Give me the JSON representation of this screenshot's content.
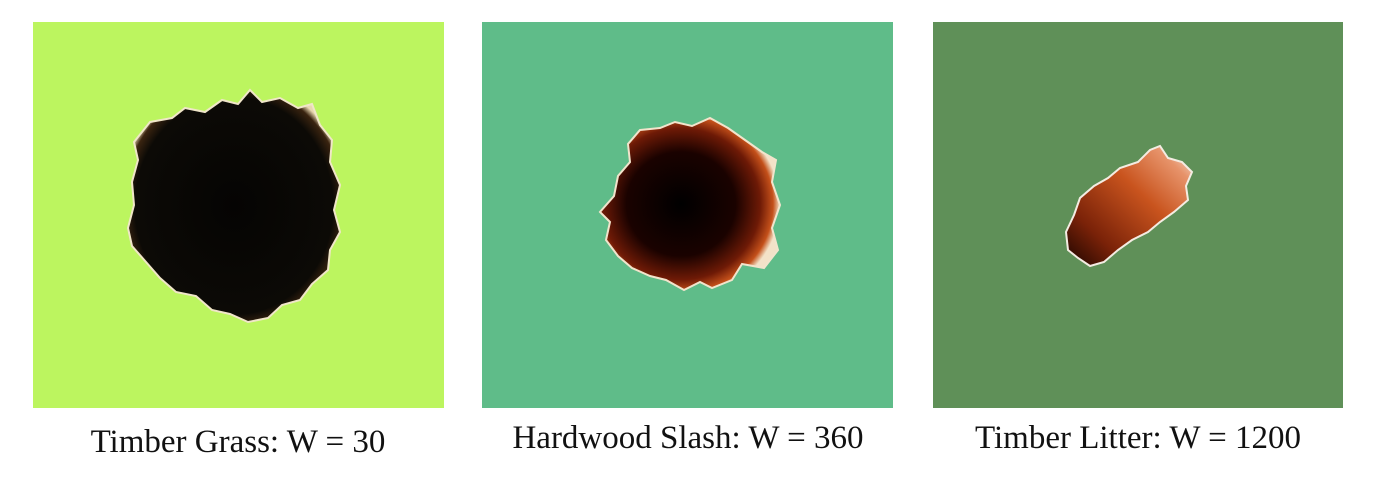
{
  "panels": [
    {
      "caption": "Timber Grass: W = 30"
    },
    {
      "caption": "Hardwood Slash: W = 360"
    },
    {
      "caption": "Timber Litter: W = 1200"
    }
  ]
}
